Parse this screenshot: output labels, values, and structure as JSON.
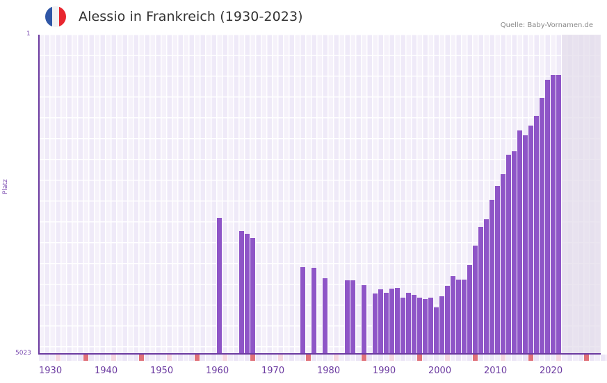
{
  "header": {
    "title": "Alessio in Frankreich (1930-2023)",
    "source": "Quelle: Baby-Vornamen.de",
    "flag_colors": [
      "#2f56a6",
      "#f2f2f4",
      "#e8262f"
    ]
  },
  "colors": {
    "bar": "#8e55c7",
    "axis": "#6b3aa0",
    "decade_marker": "#e07078",
    "half_decade_marker": "#f5d6e0",
    "grid_bg": "#efeaf8",
    "future_shade": "#e2dcea"
  },
  "chart_data": {
    "type": "bar",
    "title": "Alessio in Frankreich (1930-2023)",
    "xlabel": "",
    "ylabel": "Platz",
    "y_inverted": true,
    "ylim": [
      1,
      5023
    ],
    "y_ticks": [
      "1",
      "5023"
    ],
    "x_range": [
      1930,
      2030
    ],
    "x_ticks": [
      "1930",
      "1940",
      "1950",
      "1960",
      "1970",
      "1980",
      "1990",
      "2000",
      "2010",
      "2020"
    ],
    "grid": true,
    "future_shaded_from": 2024,
    "categories": [
      1962,
      1966,
      1967,
      1968,
      1977,
      1979,
      1981,
      1985,
      1986,
      1988,
      1990,
      1991,
      1992,
      1993,
      1994,
      1995,
      1996,
      1997,
      1998,
      1999,
      2000,
      2001,
      2002,
      2003,
      2004,
      2005,
      2006,
      2007,
      2008,
      2009,
      2010,
      2011,
      2012,
      2013,
      2014,
      2015,
      2016,
      2017,
      2018,
      2019,
      2020,
      2021,
      2022,
      2023
    ],
    "series": [
      {
        "name": "Platz",
        "values": [
          2883,
          3091,
          3134,
          3200,
          3658,
          3669,
          3833,
          3866,
          3866,
          3942,
          4073,
          4008,
          4062,
          3997,
          3986,
          4139,
          4062,
          4095,
          4139,
          4160,
          4139,
          4291,
          4117,
          3953,
          3800,
          3855,
          3855,
          3625,
          3320,
          3025,
          2905,
          2599,
          2381,
          2195,
          1890,
          1835,
          1508,
          1584,
          1431,
          1278,
          995,
          711,
          634,
          634
        ]
      }
    ]
  }
}
